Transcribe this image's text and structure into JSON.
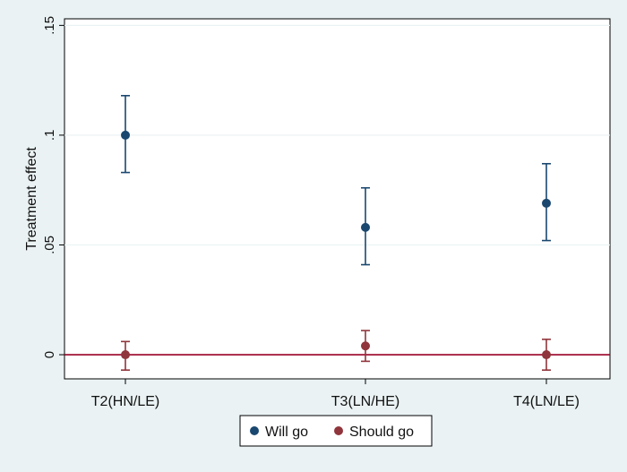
{
  "chart_data": {
    "type": "scatter",
    "ylabel": "Treatment effect",
    "categories": [
      "T2(HN/LE)",
      "T3(LN/HE)",
      "T4(LN/LE)"
    ],
    "yticks": [
      {
        "value": 0,
        "label": "0"
      },
      {
        "value": 0.05,
        "label": ".05"
      },
      {
        "value": 0.1,
        "label": ".1"
      },
      {
        "value": 0.15,
        "label": ".15"
      }
    ],
    "ylim": [
      -0.011,
      0.153
    ],
    "grid": true,
    "reference_line": {
      "y": 0,
      "color": "#990026"
    },
    "legend_position": "bottom",
    "series": [
      {
        "name": "Will go",
        "color": "#1a476f",
        "points": [
          {
            "category": "T2(HN/LE)",
            "estimate": 0.1,
            "ci_low": 0.083,
            "ci_high": 0.118
          },
          {
            "category": "T3(LN/HE)",
            "estimate": 0.058,
            "ci_low": 0.041,
            "ci_high": 0.076
          },
          {
            "category": "T4(LN/LE)",
            "estimate": 0.069,
            "ci_low": 0.052,
            "ci_high": 0.087
          }
        ]
      },
      {
        "name": "Should go",
        "color": "#90353b",
        "points": [
          {
            "category": "T2(HN/LE)",
            "estimate": 0.0,
            "ci_low": -0.007,
            "ci_high": 0.006
          },
          {
            "category": "T3(LN/HE)",
            "estimate": 0.004,
            "ci_low": -0.003,
            "ci_high": 0.011
          },
          {
            "category": "T4(LN/LE)",
            "estimate": 0.0,
            "ci_low": -0.007,
            "ci_high": 0.007
          }
        ]
      }
    ]
  }
}
